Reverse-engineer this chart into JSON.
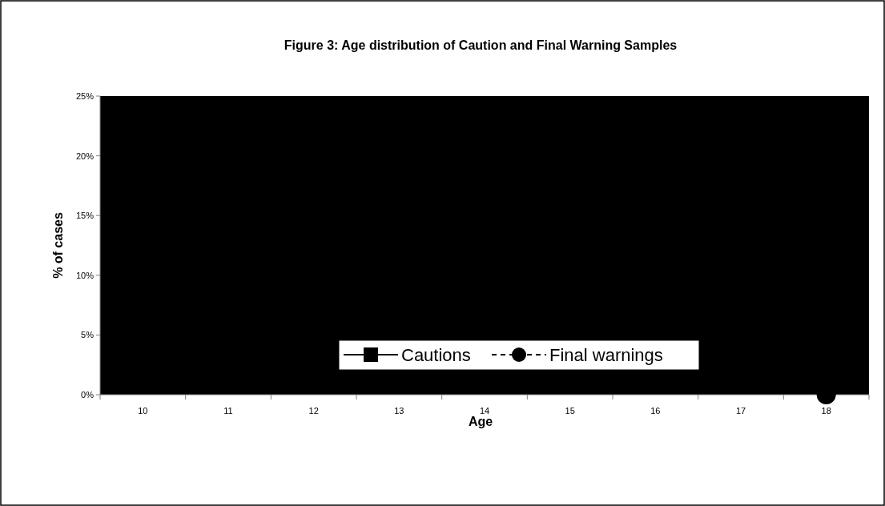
{
  "chart_data": {
    "type": "line",
    "title": "Figure 3:  Age distribution of Caution and Final Warning Samples",
    "xlabel": "Age",
    "ylabel": "% of cases",
    "categories": [
      "10",
      "11",
      "12",
      "13",
      "14",
      "15",
      "16",
      "17",
      "18"
    ],
    "series": [
      {
        "name": "Cautions",
        "color": "#000000",
        "marker": "square",
        "line_style": "solid",
        "values": [
          null,
          null,
          null,
          null,
          null,
          null,
          null,
          null,
          null
        ]
      },
      {
        "name": "Final warnings",
        "color": "#000000",
        "marker": "circle",
        "line_style": "dashed",
        "values": [
          null,
          null,
          null,
          null,
          null,
          null,
          null,
          null,
          0
        ]
      }
    ],
    "ylim": [
      0,
      0.25
    ],
    "yticks": [
      {
        "value": 0,
        "label": "0%"
      },
      {
        "value": 0.05,
        "label": "5%"
      },
      {
        "value": 0.1,
        "label": "10%"
      },
      {
        "value": 0.15,
        "label": "15%"
      },
      {
        "value": 0.2,
        "label": "20%"
      },
      {
        "value": 0.25,
        "label": "25%"
      }
    ],
    "legend": "bottom right",
    "grid": false
  }
}
